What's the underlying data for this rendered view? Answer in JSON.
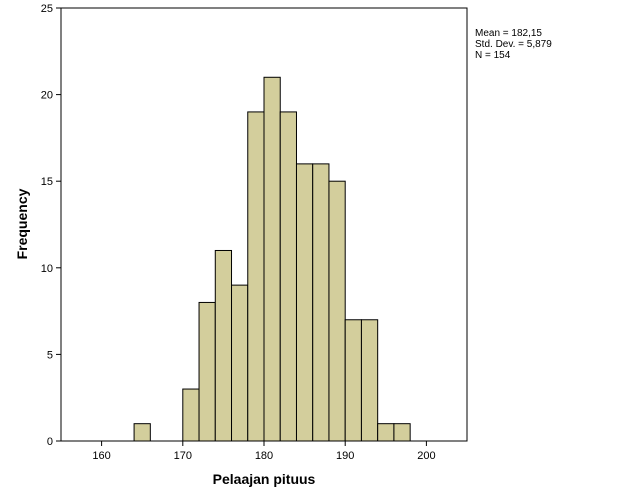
{
  "chart_data": {
    "type": "bar",
    "title": "",
    "xlabel": "Pelaajan pituus",
    "ylabel": "Frequency",
    "xlim": [
      155,
      205
    ],
    "ylim": [
      0,
      25
    ],
    "x_ticks": [
      "160",
      "170",
      "180",
      "190",
      "200"
    ],
    "y_ticks": [
      "0",
      "5",
      "10",
      "15",
      "20",
      "25"
    ],
    "bin_width": 2,
    "bin_starts": [
      164,
      170,
      172,
      174,
      176,
      178,
      180,
      182,
      184,
      186,
      188,
      190,
      192,
      194,
      196
    ],
    "values": [
      1,
      3,
      8,
      11,
      9,
      19,
      21,
      19,
      16,
      16,
      15,
      7,
      7,
      1,
      1
    ],
    "bar_color": "#d3ce9c",
    "bar_stroke": "#000000",
    "grid": false,
    "stats": {
      "mean": "Mean = 182,15",
      "std_dev": "Std. Dev. = 5,879",
      "n": "N = 154"
    }
  }
}
